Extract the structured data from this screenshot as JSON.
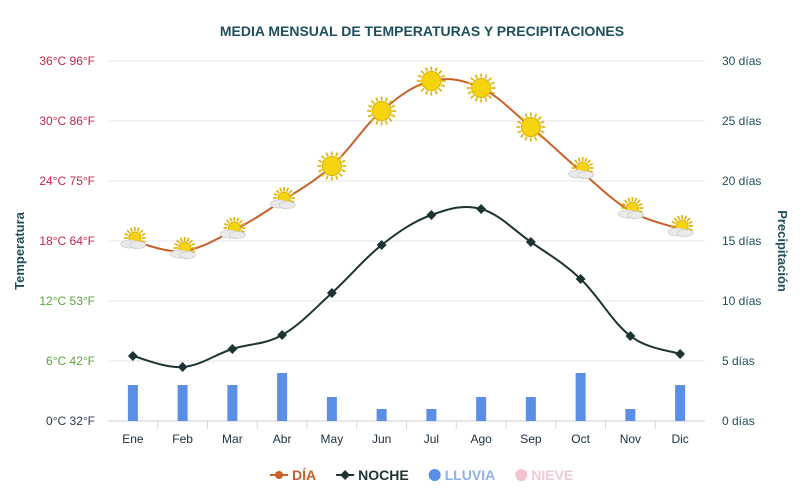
{
  "chart_data": {
    "type": "line",
    "title": "MEDIA MENSUAL DE TEMPERATURAS Y PRECIPITACIONES",
    "categories": [
      "Ene",
      "Feb",
      "Mar",
      "Abr",
      "May",
      "Jun",
      "Jul",
      "Ago",
      "Sep",
      "Oct",
      "Nov",
      "Dic"
    ],
    "left_axis": {
      "title": "Temperatura",
      "ylim": [
        0,
        36
      ],
      "ticks": [
        {
          "value": 0,
          "label": "0°C 32°F",
          "color": "#2b3a55"
        },
        {
          "value": 6,
          "label": "6°C 42°F",
          "color": "#5aa63c"
        },
        {
          "value": 12,
          "label": "12°C 53°F",
          "color": "#5aa63c"
        },
        {
          "value": 18,
          "label": "18°C 64°F",
          "color": "#c0264a"
        },
        {
          "value": 24,
          "label": "24°C 75°F",
          "color": "#c0264a"
        },
        {
          "value": 30,
          "label": "30°C 86°F",
          "color": "#c0264a"
        },
        {
          "value": 36,
          "label": "36°C 96°F",
          "color": "#c0264a"
        }
      ]
    },
    "right_axis": {
      "title": "Precipitación",
      "ylim": [
        0,
        30
      ],
      "ticks": [
        {
          "value": 0,
          "label": "0 días"
        },
        {
          "value": 5,
          "label": "5  días"
        },
        {
          "value": 10,
          "label": "10 días"
        },
        {
          "value": 15,
          "label": "15 días"
        },
        {
          "value": 20,
          "label": "20 días"
        },
        {
          "value": 25,
          "label": "25 días"
        },
        {
          "value": 30,
          "label": "30 días"
        }
      ]
    },
    "series": [
      {
        "name": "DÍA",
        "axis": "left",
        "kind": "line",
        "color": "#c8602a",
        "values": [
          18,
          17,
          19,
          22,
          25.5,
          31,
          34,
          33.3,
          29.4,
          25,
          21,
          19.2
        ]
      },
      {
        "name": "NOCHE",
        "axis": "left",
        "kind": "line",
        "color": "#1e3434",
        "values": [
          6.5,
          5.4,
          7.2,
          8.6,
          12.8,
          17.6,
          20.6,
          21.2,
          17.9,
          14.2,
          8.5,
          6.7
        ]
      },
      {
        "name": "LLUVIA",
        "axis": "right",
        "kind": "bar",
        "color": "#5b8fe6",
        "values": [
          3,
          3,
          3,
          4,
          2,
          1,
          1,
          2,
          2,
          4,
          1,
          3
        ]
      },
      {
        "name": "NIEVE",
        "axis": "right",
        "kind": "bar",
        "color": "#f3c4d0",
        "values": [
          0,
          0,
          0,
          0,
          0,
          0,
          0,
          0,
          0,
          0,
          0,
          0
        ]
      }
    ],
    "weather_icons": [
      "partly-cloudy",
      "partly-cloudy",
      "partly-cloudy",
      "partly-cloudy",
      "sunny",
      "sunny",
      "sunny",
      "sunny",
      "sunny",
      "partly-cloudy",
      "partly-cloudy",
      "partly-cloudy"
    ],
    "legend_position": "bottom-center",
    "grid": true
  },
  "colors": {
    "title": "#1f4f5c",
    "axis_title": "#1f4f5c",
    "right_ticks": "#1f4f5c",
    "grid": "#e6e6e6",
    "sun": "#f4d40e",
    "sun_edge": "#e0b000",
    "cloud": "#eaeaea"
  }
}
